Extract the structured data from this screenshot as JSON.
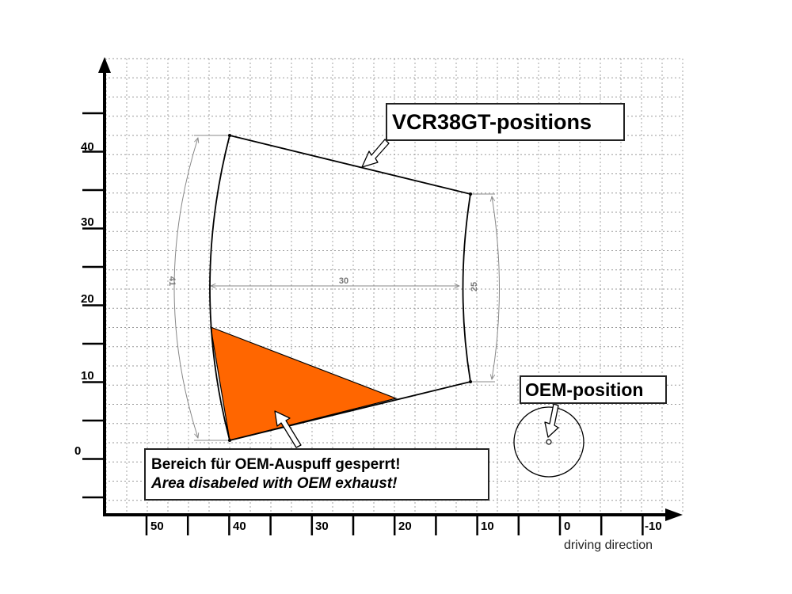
{
  "colors": {
    "restricted_area": "#ff6600",
    "grid": "#9a9a9a",
    "axis": "#000000",
    "dimension": "#888888"
  },
  "axes": {
    "x_tick_labels": [
      "50",
      "40",
      "30",
      "20",
      "10",
      "0",
      "-10"
    ],
    "y_tick_labels": [
      "0",
      "10",
      "20",
      "30",
      "40"
    ],
    "x_caption": "driving direction"
  },
  "dimensions": {
    "left_arc": "41",
    "width": "30",
    "right_arc": "25"
  },
  "callouts": {
    "vcr_positions": "VCR38GT-positions",
    "oem_position": "OEM-position",
    "area_de": "Bereich für OEM-Auspuff gesperrt!",
    "area_en": "Area disabeled with OEM exhaust!"
  }
}
